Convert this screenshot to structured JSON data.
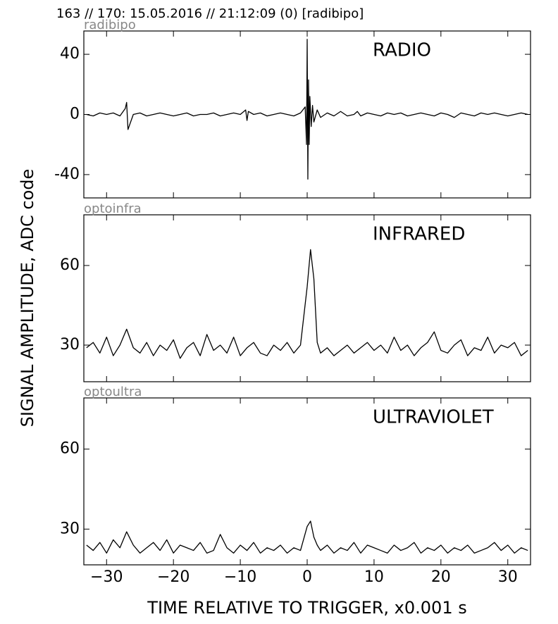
{
  "title": "163 // 170:   15.05.2016 // 21:12:09 (0)  [radibipo]",
  "x_label": "TIME RELATIVE TO TRIGGER,   x0.001 s",
  "y_label": "SIGNAL AMPLITUDE,  ADC code",
  "chart_data": [
    {
      "type": "line",
      "title": "RADIO",
      "label": "radibipo",
      "color": "#000000",
      "xlim": [
        -33.4,
        33.4
      ],
      "ylim": [
        -55.5,
        55.5
      ],
      "yticks": [
        -40,
        0,
        40
      ],
      "x": [
        -33,
        -32,
        -31,
        -30,
        -29,
        -28,
        -27.2,
        -27,
        -26.8,
        -26,
        -25,
        -24,
        -23,
        -22,
        -21,
        -20,
        -19,
        -18,
        -17,
        -16,
        -15,
        -14,
        -13,
        -12,
        -11,
        -10,
        -9.2,
        -9,
        -8.8,
        -8,
        -7,
        -6,
        -5,
        -4,
        -3,
        -2,
        -1,
        -0.3,
        -0.1,
        0,
        0.1,
        0.2,
        0.3,
        0.4,
        0.6,
        0.8,
        1,
        1.5,
        2,
        3,
        4,
        5,
        6,
        7,
        7.5,
        8,
        9,
        10,
        11,
        12,
        13,
        14,
        15,
        16,
        17,
        18,
        19,
        20,
        21,
        22,
        23,
        24,
        25,
        26,
        27,
        28,
        29,
        30,
        31,
        32,
        33
      ],
      "values": [
        0,
        -1,
        1,
        0,
        1,
        -1,
        4,
        8,
        -10,
        0,
        1,
        -1,
        0,
        1,
        0,
        -1,
        0,
        1,
        -1,
        0,
        0,
        1,
        -1,
        0,
        1,
        0,
        3,
        -4,
        2,
        0,
        1,
        -1,
        0,
        1,
        0,
        -1,
        1,
        5,
        -20,
        50,
        -43,
        23,
        -20,
        12,
        -8,
        6,
        -5,
        3,
        -2,
        1,
        -1,
        2,
        -1,
        0,
        2,
        -1,
        1,
        0,
        -1,
        1,
        0,
        1,
        -1,
        0,
        1,
        0,
        -1,
        1,
        0,
        -2,
        1,
        0,
        -1,
        1,
        0,
        1,
        0,
        -1,
        0,
        1,
        0
      ]
    },
    {
      "type": "line",
      "title": "INFRARED",
      "label": "optoinfra",
      "color": "#000000",
      "xlim": [
        -33.4,
        33.4
      ],
      "ylim": [
        16.2,
        79.1
      ],
      "yticks": [
        30,
        60
      ],
      "x": [
        -33,
        -32,
        -31,
        -30,
        -29,
        -28,
        -27,
        -26,
        -25,
        -24,
        -23,
        -22,
        -21,
        -20,
        -19,
        -18,
        -17,
        -16,
        -15,
        -14,
        -13,
        -12,
        -11,
        -10,
        -9,
        -8,
        -7,
        -6,
        -5,
        -4,
        -3,
        -2,
        -1,
        0,
        0.5,
        1,
        1.5,
        2,
        3,
        4,
        5,
        6,
        7,
        8,
        9,
        10,
        11,
        12,
        13,
        14,
        15,
        16,
        17,
        18,
        19,
        20,
        21,
        22,
        23,
        24,
        25,
        26,
        27,
        28,
        29,
        30,
        31,
        32,
        33
      ],
      "values": [
        29,
        31,
        27,
        33,
        26,
        30,
        36,
        29,
        27,
        31,
        26,
        30,
        28,
        32,
        25,
        29,
        31,
        26,
        34,
        28,
        30,
        27,
        33,
        26,
        29,
        31,
        27,
        26,
        30,
        28,
        31,
        27,
        30,
        52,
        66,
        55,
        31,
        27,
        29,
        26,
        28,
        30,
        27,
        29,
        31,
        28,
        30,
        27,
        33,
        28,
        30,
        26,
        29,
        31,
        35,
        28,
        27,
        30,
        32,
        26,
        29,
        28,
        33,
        27,
        30,
        29,
        31,
        26,
        28
      ]
    },
    {
      "type": "line",
      "title": "ULTRAVIOLET",
      "label": "optoultra",
      "color": "#000000",
      "xlim": [
        -33.4,
        33.4
      ],
      "ylim": [
        16.6,
        79.2
      ],
      "yticks": [
        30,
        60
      ],
      "xticks": [
        {
          "value": -30,
          "label": "−30"
        },
        {
          "value": -20,
          "label": "−20"
        },
        {
          "value": -10,
          "label": "−10"
        },
        0,
        10,
        20,
        30
      ],
      "x": [
        -33,
        -32,
        -31,
        -30,
        -29,
        -28,
        -27,
        -26,
        -25,
        -24,
        -23,
        -22,
        -21,
        -20,
        -19,
        -18,
        -17,
        -16,
        -15,
        -14,
        -13,
        -12,
        -11,
        -10,
        -9,
        -8,
        -7,
        -6,
        -5,
        -4,
        -3,
        -2,
        -1,
        0,
        0.5,
        1,
        1.5,
        2,
        3,
        4,
        5,
        6,
        7,
        8,
        9,
        10,
        11,
        12,
        13,
        14,
        15,
        16,
        17,
        18,
        19,
        20,
        21,
        22,
        23,
        24,
        25,
        26,
        27,
        28,
        29,
        30,
        31,
        32,
        33
      ],
      "values": [
        24,
        22,
        25,
        21,
        26,
        23,
        29,
        24,
        21,
        23,
        25,
        22,
        26,
        21,
        24,
        23,
        22,
        25,
        21,
        22,
        28,
        23,
        21,
        24,
        22,
        25,
        21,
        23,
        22,
        24,
        21,
        23,
        22,
        31,
        33,
        27,
        24,
        22,
        24,
        21,
        23,
        22,
        25,
        21,
        24,
        23,
        22,
        21,
        24,
        22,
        23,
        25,
        21,
        23,
        22,
        24,
        21,
        23,
        22,
        24,
        21,
        22,
        23,
        25,
        22,
        24,
        21,
        23,
        22
      ]
    }
  ]
}
